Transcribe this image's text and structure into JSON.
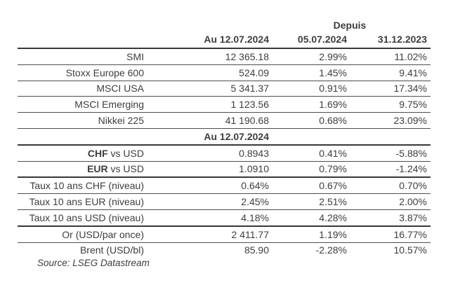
{
  "colors": {
    "background": "#ffffff",
    "text": "#3d3d3d",
    "line_thick": "#383838",
    "line_thin": "#4d4d4d"
  },
  "table": {
    "header": {
      "depuis_label": "Depuis",
      "col_current": "Au 12.07.2024",
      "col_prev_week": "05.07.2024",
      "col_year_start": "31.12.2023"
    },
    "section2_header": "Au 12.07.2024",
    "rows": [
      {
        "label_bold": "",
        "label_rest": "SMI",
        "value": "12 365.18",
        "chg_week": "2.99%",
        "chg_ytd": "11.02%"
      },
      {
        "label_bold": "",
        "label_rest": "Stoxx Europe 600",
        "value": "524.09",
        "chg_week": "1.45%",
        "chg_ytd": "9.41%"
      },
      {
        "label_bold": "",
        "label_rest": "MSCI USA",
        "value": "5 341.37",
        "chg_week": "0.91%",
        "chg_ytd": "17.34%"
      },
      {
        "label_bold": "",
        "label_rest": "MSCI Emerging",
        "value": "1 123.56",
        "chg_week": "1.69%",
        "chg_ytd": "9.75%"
      },
      {
        "label_bold": "",
        "label_rest": "Nikkei 225",
        "value": "41 190.68",
        "chg_week": "0.68%",
        "chg_ytd": "23.09%"
      },
      {
        "label_bold": "CHF",
        "label_rest": " vs USD",
        "value": "0.8943",
        "chg_week": "0.41%",
        "chg_ytd": "-5.88%"
      },
      {
        "label_bold": "EUR",
        "label_rest": " vs USD",
        "value": "1.0910",
        "chg_week": "0.79%",
        "chg_ytd": "-1.24%"
      },
      {
        "label_bold": "",
        "label_rest": "Taux 10 ans CHF (niveau)",
        "value": "0.64%",
        "chg_week": "0.67%",
        "chg_ytd": "0.70%"
      },
      {
        "label_bold": "",
        "label_rest": "Taux 10 ans EUR (niveau)",
        "value": "2.45%",
        "chg_week": "2.51%",
        "chg_ytd": "2.00%"
      },
      {
        "label_bold": "",
        "label_rest": "Taux 10 ans USD (niveau)",
        "value": "4.18%",
        "chg_week": "4.28%",
        "chg_ytd": "3.87%"
      },
      {
        "label_bold": "",
        "label_rest": "Or (USD/par once)",
        "value": "2 411.77",
        "chg_week": "1.19%",
        "chg_ytd": "16.77%"
      },
      {
        "label_bold": "",
        "label_rest": "Brent (USD/bl)",
        "value": "85.90",
        "chg_week": "-2.28%",
        "chg_ytd": "10.57%"
      }
    ],
    "source": "Source: LSEG Datastream"
  }
}
